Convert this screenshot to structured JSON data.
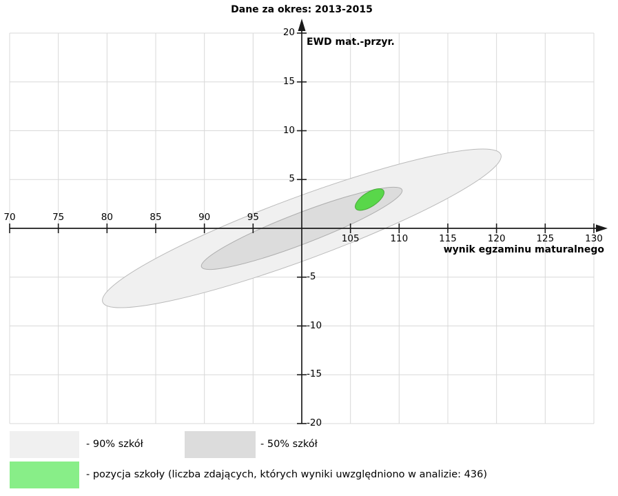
{
  "chart_data": {
    "type": "scatter",
    "title": "Dane za okres: 2013-2015",
    "xlabel": "wynik egzaminu maturalnego",
    "ylabel": "EWD mat.-przyr.",
    "xlim": [
      70,
      130
    ],
    "ylim": [
      -20,
      20
    ],
    "grid": true,
    "tick_step": 5,
    "x_ticks": [
      70,
      75,
      80,
      85,
      90,
      95,
      100,
      105,
      110,
      115,
      120,
      125,
      130
    ],
    "y_ticks": [
      -20,
      -15,
      -10,
      -5,
      0,
      5,
      10,
      15,
      20
    ],
    "x_tick_labels_above_axis": [
      "70",
      "75",
      "80",
      "85",
      "90",
      "95"
    ],
    "x_tick_labels_below_axis": [
      "105",
      "110",
      "115",
      "120",
      "125",
      "130"
    ],
    "y_tick_labels_left_of_axis": [
      "5",
      "10",
      "15",
      "20"
    ],
    "y_tick_labels_right_of_axis": [
      "-5",
      "-10",
      "-15",
      "-20"
    ],
    "axes_cross_at": [
      100,
      0
    ],
    "ellipses": [
      {
        "name": "90% szkół",
        "center": [
          100,
          0
        ],
        "semi_major": 21.8,
        "semi_minor": 3.2,
        "tilt_deg": 20.3,
        "fill": "#f0f0f0",
        "stroke": "#bababa"
      },
      {
        "name": "50% szkół",
        "center": [
          100,
          0
        ],
        "semi_major": 11.03,
        "semi_minor": 1.58,
        "tilt_deg": 21.0,
        "fill": "#dcdcdc",
        "stroke": "#aeaeae"
      },
      {
        "name": "pozycja szkoły",
        "center": [
          106.97,
          2.95
        ],
        "semi_major": 1.7,
        "semi_minor": 0.73,
        "tilt_deg": 33.0,
        "fill": "#59d74a",
        "stroke": "#4aa93c"
      }
    ],
    "colors": {
      "gridline": "#d8d8d8",
      "axis": "#1a1a1a",
      "background": "#ffffff"
    }
  },
  "legend": {
    "items": [
      {
        "label": "- 90% szkół",
        "color": "#f0f0f0"
      },
      {
        "label": "- 50% szkół",
        "color": "#dcdcdc"
      },
      {
        "label": "- pozycja szkoły (liczba zdających, których wyniki uwzględniono w analizie: 436)",
        "color": "#88ee88"
      }
    ]
  }
}
